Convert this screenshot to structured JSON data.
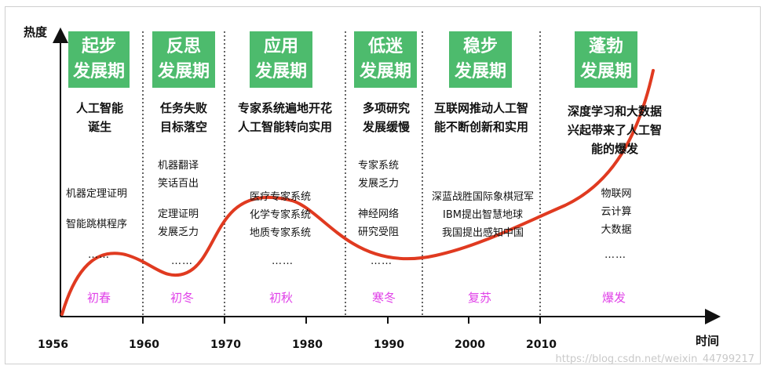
{
  "axes": {
    "y_title": "热度",
    "x_title": "时间"
  },
  "years": [
    "1956",
    "1960",
    "1970",
    "1980",
    "1990",
    "2000",
    "2010"
  ],
  "phases": [
    {
      "title_1": "起步",
      "title_2": "发展期",
      "desc": [
        "人工智能",
        "诞生"
      ],
      "items": [
        "机器定理证明",
        "智能跳棋程序"
      ],
      "dots": "……",
      "season": "初春"
    },
    {
      "title_1": "反思",
      "title_2": "发展期",
      "desc": [
        "任务失败",
        "目标落空"
      ],
      "items": [
        "机器翻译",
        "笑话百出",
        "定理证明",
        "发展乏力"
      ],
      "dots": "……",
      "season": "初冬"
    },
    {
      "title_1": "应用",
      "title_2": "发展期",
      "desc": [
        "专家系统遍地开花",
        "人工智能转向实用"
      ],
      "items": [
        "医疗专家系统",
        "化学专家系统",
        "地质专家系统"
      ],
      "dots": "……",
      "season": "初秋"
    },
    {
      "title_1": "低迷",
      "title_2": "发展期",
      "desc": [
        "多项研究",
        "发展缓慢"
      ],
      "items": [
        "专家系统",
        "发展乏力",
        "神经网络",
        "研究受阻"
      ],
      "dots": "……",
      "season": "寒冬"
    },
    {
      "title_1": "稳步",
      "title_2": "发展期",
      "desc": [
        "互联网推动人工智",
        "能不断创新和实用"
      ],
      "items": [
        "深蓝战胜国际象棋冠军",
        "IBM提出智慧地球",
        "我国提出感知中国"
      ],
      "season": "复苏"
    },
    {
      "title_1": "蓬勃",
      "title_2": "发展期",
      "desc": [
        "深度学习和大数据",
        "兴起带来了人工智",
        "能的爆发"
      ],
      "items": [
        "物联网",
        "云计算",
        "大数据"
      ],
      "dots": "……",
      "season": "爆发"
    }
  ],
  "watermark": "https://blog.csdn.net/weixin_44799217",
  "colors": {
    "phase_box": "#4dbb6d",
    "curve": "#e03a20",
    "season": "#e040e8"
  }
}
